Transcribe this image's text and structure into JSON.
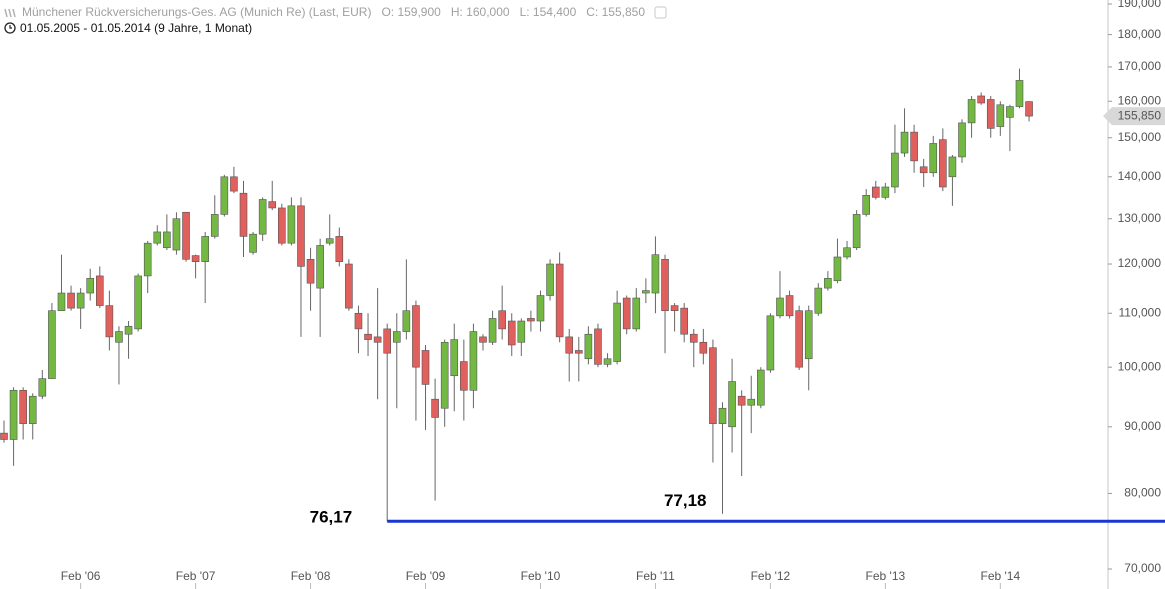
{
  "header": {
    "title": "Münchener Rückversicherungs-Ges. AG (Munich Re) (Last, EUR)",
    "ohlc": [
      "O: 159,900",
      "H: 160,000",
      "L: 154,400",
      "C: 155,850"
    ]
  },
  "chart_data": {
    "type": "candlestick",
    "subtitle": "01.05.2005 - 01.05.2014 (9 Jahre, 1 Monat)",
    "x": [
      "2005-06",
      "2005-07",
      "2005-08",
      "2005-09",
      "2005-10",
      "2005-11",
      "2005-12",
      "2006-01",
      "2006-02",
      "2006-03",
      "2006-04",
      "2006-05",
      "2006-06",
      "2006-07",
      "2006-08",
      "2006-09",
      "2006-10",
      "2006-11",
      "2006-12",
      "2007-01",
      "2007-02",
      "2007-03",
      "2007-04",
      "2007-05",
      "2007-06",
      "2007-07",
      "2007-08",
      "2007-09",
      "2007-10",
      "2007-11",
      "2007-12",
      "2008-01",
      "2008-02",
      "2008-03",
      "2008-04",
      "2008-05",
      "2008-06",
      "2008-07",
      "2008-08",
      "2008-09",
      "2008-10",
      "2008-11",
      "2008-12",
      "2009-01",
      "2009-02",
      "2009-03",
      "2009-04",
      "2009-05",
      "2009-06",
      "2009-07",
      "2009-08",
      "2009-09",
      "2009-10",
      "2009-11",
      "2009-12",
      "2010-01",
      "2010-02",
      "2010-03",
      "2010-04",
      "2010-05",
      "2010-06",
      "2010-07",
      "2010-08",
      "2010-09",
      "2010-10",
      "2010-11",
      "2010-12",
      "2011-01",
      "2011-02",
      "2011-03",
      "2011-04",
      "2011-05",
      "2011-06",
      "2011-07",
      "2011-08",
      "2011-09",
      "2011-10",
      "2011-11",
      "2011-12",
      "2012-01",
      "2012-02",
      "2012-03",
      "2012-04",
      "2012-05",
      "2012-06",
      "2012-07",
      "2012-08",
      "2012-09",
      "2012-10",
      "2012-11",
      "2012-12",
      "2013-01",
      "2013-02",
      "2013-03",
      "2013-04",
      "2013-05",
      "2013-06",
      "2013-07",
      "2013-08",
      "2013-09",
      "2013-10",
      "2013-11",
      "2013-12",
      "2014-01",
      "2014-02",
      "2014-03",
      "2014-04",
      "2014-05"
    ],
    "open": [
      89,
      88,
      96,
      90.5,
      95,
      98,
      110.5,
      114,
      111,
      114,
      117.5,
      111.5,
      104.5,
      106,
      107,
      117.5,
      124.5,
      123.5,
      123,
      131.5,
      121.8,
      120.5,
      126,
      131,
      140,
      136,
      122.5,
      126.5,
      134,
      132.5,
      124.5,
      133,
      121,
      115,
      124.5,
      126,
      120,
      110,
      106,
      105.5,
      107,
      104.5,
      106.5,
      111.5,
      103,
      94.5,
      93,
      98.5,
      101,
      96,
      105.5,
      104.5,
      110.5,
      108.5,
      104.5,
      109,
      108.5,
      113.5,
      120,
      105.5,
      103,
      101.5,
      107,
      100.5,
      101,
      113,
      107,
      114,
      114,
      121,
      111.5,
      111,
      106,
      104.5,
      103.5,
      90.5,
      90,
      95,
      93.5,
      93.5,
      99.5,
      109.5,
      113.5,
      110.5,
      101.5,
      110,
      115,
      116.5,
      121.5,
      123.5,
      131,
      137.5,
      135,
      137.5,
      146,
      151.5,
      142.5,
      141,
      149.5,
      140,
      145,
      154,
      161.5,
      160.5,
      153,
      155.5,
      158.5,
      159.9
    ],
    "high": [
      91,
      96.5,
      96.5,
      95.5,
      99.5,
      112,
      122,
      115.5,
      115,
      119,
      119.5,
      114.5,
      107.5,
      108.5,
      118,
      125,
      128.5,
      131,
      131.5,
      131.5,
      122,
      127,
      135.5,
      140.5,
      142.5,
      139,
      127,
      135,
      139,
      133.5,
      135,
      135,
      123.5,
      125.5,
      131,
      128,
      121,
      111.5,
      110,
      115,
      108,
      110,
      121,
      112.5,
      104,
      98,
      105,
      108,
      105,
      108,
      106,
      110.5,
      115.5,
      110,
      109,
      110.5,
      114.5,
      121,
      122.5,
      107,
      105.5,
      107.5,
      108,
      102.5,
      114.5,
      113.5,
      115,
      117,
      126,
      122,
      112,
      112,
      107,
      107,
      105,
      94,
      101.5,
      96,
      98.5,
      100,
      110,
      118.5,
      114.5,
      111.5,
      111.5,
      116,
      118.5,
      125.5,
      125,
      132,
      137,
      139,
      138.5,
      153.5,
      158,
      153.5,
      144.5,
      150.5,
      152.5,
      145.5,
      155,
      161.5,
      162.5,
      161.5,
      160,
      159,
      169.5,
      160
    ],
    "low": [
      87.5,
      84,
      88,
      88,
      94.5,
      98,
      110.5,
      110.5,
      107,
      112.5,
      111,
      103,
      97,
      101.5,
      106.5,
      114,
      124,
      123,
      122,
      120.5,
      117,
      112,
      125.5,
      130.5,
      136,
      121.5,
      122,
      125,
      132,
      124,
      124,
      105.5,
      110.5,
      105.5,
      124,
      119.5,
      110.5,
      102.5,
      102,
      94.5,
      76.17,
      93,
      105,
      91,
      89.5,
      79,
      90,
      92.5,
      91,
      93,
      103,
      104,
      105,
      102,
      102,
      106.5,
      106.5,
      112.5,
      104.5,
      97.5,
      97.5,
      100.5,
      100,
      100,
      100.5,
      106,
      106.5,
      112,
      110,
      102.5,
      106.5,
      104.5,
      100,
      100.5,
      84.5,
      77.18,
      86,
      82.5,
      89,
      93,
      99,
      109,
      109,
      99.5,
      96,
      109.5,
      114.5,
      116,
      121,
      123,
      130.5,
      134.5,
      134.5,
      136,
      145,
      141,
      137.5,
      140,
      136.5,
      133,
      143.5,
      150,
      159,
      150,
      150.5,
      146.5,
      158,
      154.4
    ],
    "close": [
      88,
      96,
      90.5,
      95,
      98,
      110.5,
      114,
      111,
      114,
      117,
      111.5,
      105.5,
      106.5,
      107.5,
      117.5,
      124.5,
      127,
      127,
      130,
      121,
      120.5,
      126,
      131,
      140,
      136.5,
      126,
      126.5,
      134.5,
      132.5,
      124.5,
      133,
      119.5,
      116,
      124,
      125.5,
      120.5,
      111,
      107,
      105,
      104.5,
      102.5,
      106.5,
      110.5,
      100,
      97,
      91.5,
      104.5,
      105,
      96,
      106.5,
      104.5,
      109,
      107,
      104,
      108.5,
      108.5,
      113.5,
      120,
      105.5,
      102.5,
      102.5,
      106,
      100.5,
      101.5,
      112,
      107,
      113,
      114.5,
      122,
      110.5,
      110.5,
      106,
      104.5,
      102.5,
      90.5,
      93,
      97.5,
      93.5,
      94.5,
      99.5,
      109.5,
      113,
      109.5,
      100,
      110.5,
      115,
      117,
      121.5,
      123.5,
      131,
      135.5,
      135,
      137.5,
      146,
      151.5,
      144,
      141,
      148.5,
      137.5,
      145,
      154,
      160.5,
      159.5,
      152.5,
      159,
      158.5,
      166,
      155.85
    ],
    "up_color": "#72b843",
    "down_color": "#e0605e",
    "log_scale": true,
    "ylim": [
      70,
      190
    ],
    "yticks": [
      {
        "value": 70,
        "label": "70,000"
      },
      {
        "value": 80,
        "label": "80,000"
      },
      {
        "value": 90,
        "label": "90,000"
      },
      {
        "value": 100,
        "label": "100,000"
      },
      {
        "value": 110,
        "label": "110,000"
      },
      {
        "value": 120,
        "label": "120,000"
      },
      {
        "value": 130,
        "label": "130,000"
      },
      {
        "value": 140,
        "label": "140,000"
      },
      {
        "value": 150,
        "label": "150,000"
      },
      {
        "value": 160,
        "label": "160,000"
      },
      {
        "value": 170,
        "label": "170,000"
      },
      {
        "value": 180,
        "label": "180,000"
      },
      {
        "value": 190,
        "label": "190,000"
      }
    ],
    "xticks": [
      {
        "value": "2006-02",
        "label": "Feb '06"
      },
      {
        "value": "2007-02",
        "label": "Feb '07"
      },
      {
        "value": "2008-02",
        "label": "Feb '08"
      },
      {
        "value": "2009-02",
        "label": "Feb '09"
      },
      {
        "value": "2010-02",
        "label": "Feb '10"
      },
      {
        "value": "2011-02",
        "label": "Feb '11"
      },
      {
        "value": "2012-02",
        "label": "Feb '12"
      },
      {
        "value": "2013-02",
        "label": "Feb '13"
      },
      {
        "value": "2014-02",
        "label": "Feb '14"
      }
    ],
    "last_price": {
      "value": 155.85,
      "label": "155,850"
    },
    "annotations": [
      {
        "x": "2008-10",
        "value": 76.17,
        "label": "76,17"
      },
      {
        "x": "2011-09",
        "value": 77.18,
        "label": "77,18"
      }
    ],
    "level_line": {
      "x": "2008-10",
      "value": 76.17,
      "color": "#1a35d0"
    }
  }
}
